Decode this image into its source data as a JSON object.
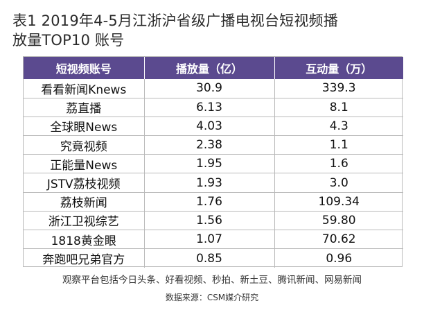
{
  "title_line1": "表1  2019年4-5月江浙沪省级广播电视台短视频播",
  "title_line2": "放量TOP10 账号",
  "headers": [
    "短视频账号",
    "播放量（亿）",
    "互动量（万）"
  ],
  "rows": [
    [
      "看看新闻Knews",
      "30.9",
      "339.3"
    ],
    [
      "荔直播",
      "6.13",
      "8.1"
    ],
    [
      "全球眼News",
      "4.03",
      "4.3"
    ],
    [
      "究竟视频",
      "2.38",
      "1.1"
    ],
    [
      "正能量News",
      "1.95",
      "1.6"
    ],
    [
      "JSTV荔枝视频",
      "1.93",
      "3.0"
    ],
    [
      "荔枝新闻",
      "1.76",
      "109.34"
    ],
    [
      "浙江卫视综艺",
      "1.56",
      "59.80"
    ],
    [
      "1818黄金眼",
      "1.07",
      "70.62"
    ],
    [
      "奔跑吧兄弟官方",
      "0.85",
      "0.96"
    ]
  ],
  "note": "观察平台包括今日头条、好看视频、秒拍、新土豆、腾讯新闻、网易新闻",
  "source": "数据来源：CSM媒介研究",
  "colors": {
    "header_bg": "#5b4a8f",
    "border": "#b9b9b9"
  }
}
